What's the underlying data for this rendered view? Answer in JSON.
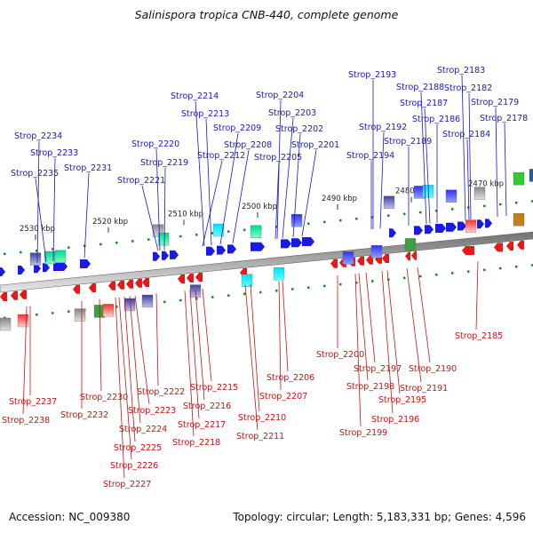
{
  "title": "Salinispora tropica CNB-440, complete genome",
  "footer": {
    "accession": "Accession: NC_009380",
    "summary": "Topology: circular; Length: 5,183,331 bp; Genes: 4,596"
  },
  "scale_ticks": [
    "2530 kbp",
    "2520 kbp",
    "2510 kbp",
    "2500 kbp",
    "2490 kbp",
    "2480 kbp",
    "2470 kbp"
  ],
  "colors": {
    "forward_labels": "#1818c8",
    "reverse_labels": "#d01010",
    "forward_genes": "#1a1ae6",
    "reverse_genes": "#e81818"
  },
  "forward_labels": [
    "Strop_2234",
    "Strop_2233",
    "Strop_2235",
    "Strop_2231",
    "Strop_2220",
    "Strop_2219",
    "Strop_2221",
    "Strop_2214",
    "Strop_2213",
    "Strop_2209",
    "Strop_2208",
    "Strop_2212",
    "Strop_2204",
    "Strop_2203",
    "Strop_2202",
    "Strop_2201",
    "Strop_2205",
    "Strop_2193",
    "Strop_2192",
    "Strop_2194",
    "Strop_2188",
    "Strop_2187",
    "Strop_2189",
    "Strop_2186",
    "Strop_2183",
    "Strop_2182",
    "Strop_2179",
    "Strop_2178",
    "Strop_2184"
  ],
  "reverse_labels": [
    "Strop_2237",
    "Strop_2238",
    "Strop_2230",
    "Strop_2232",
    "Strop_2222",
    "Strop_2223",
    "Strop_2224",
    "Strop_2225",
    "Strop_2226",
    "Strop_2227",
    "Strop_2215",
    "Strop_2216",
    "Strop_2217",
    "Strop_2218",
    "Strop_2210",
    "Strop_2211",
    "Strop_2207",
    "Strop_2206",
    "Strop_2200",
    "Strop_2197",
    "Strop_2198",
    "Strop_2199",
    "Strop_2196",
    "Strop_2195",
    "Strop_2191",
    "Strop_2190",
    "Strop_2185"
  ]
}
